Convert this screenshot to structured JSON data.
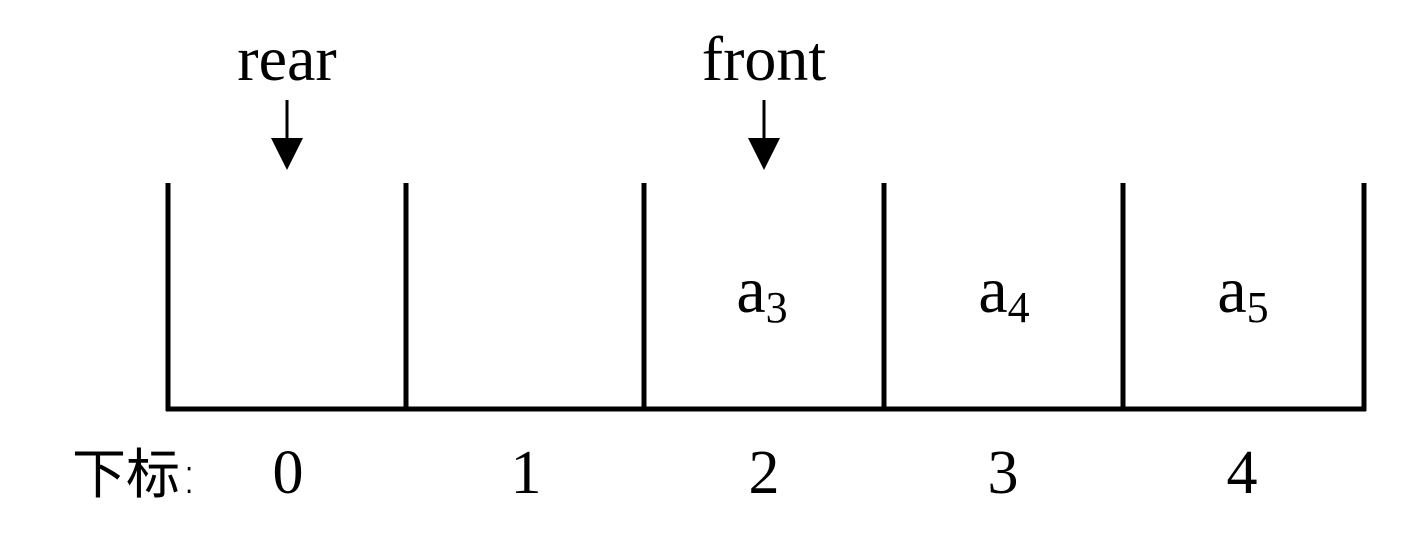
{
  "pointers": {
    "rear": "rear",
    "front": "front"
  },
  "index_prefix": "下标:",
  "cells": [
    {
      "index": "0",
      "symbol": "",
      "subscript": ""
    },
    {
      "index": "1",
      "symbol": "",
      "subscript": ""
    },
    {
      "index": "2",
      "symbol": "a",
      "subscript": "3"
    },
    {
      "index": "3",
      "symbol": "a",
      "subscript": "4"
    },
    {
      "index": "4",
      "symbol": "a",
      "subscript": "5"
    }
  ]
}
